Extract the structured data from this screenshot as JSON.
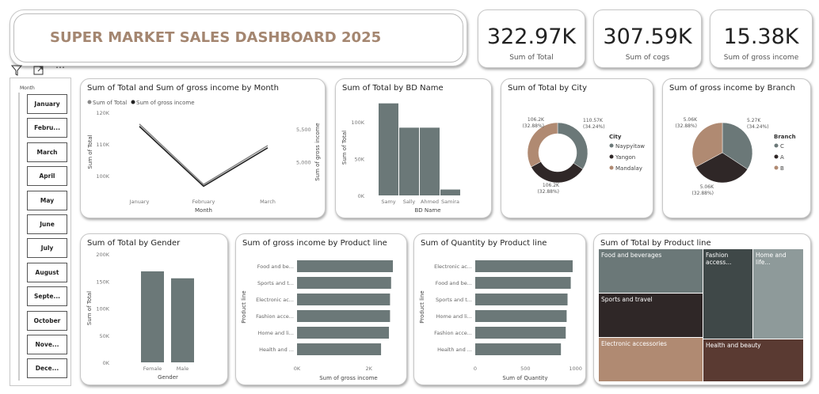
{
  "title": "SUPER MARKET SALES DASHBOARD 2025",
  "toolbar": {
    "filter_icon": "filter-icon",
    "focus_icon": "focus-mode-icon",
    "more_icon": "more-options-icon"
  },
  "kpis": [
    {
      "value": "322.97K",
      "label": "Sum of Total"
    },
    {
      "value": "307.59K",
      "label": "Sum of cogs"
    },
    {
      "value": "15.38K",
      "label": "Sum of gross income"
    }
  ],
  "slicer": {
    "header": "Month",
    "items": [
      "January",
      "Febru...",
      "March",
      "April",
      "May",
      "June",
      "July",
      "August",
      "Septe...",
      "October",
      "Nove...",
      "Dece..."
    ]
  },
  "colors": {
    "gray": "#6b7878",
    "dark": "#2f2727",
    "tan": "#b08a72",
    "brown": "#5a3a32",
    "teal": "#3f4848",
    "light": "#8e9a9a"
  },
  "chart_data": [
    {
      "type": "line",
      "title": "Sum of Total and Sum of gross income by Month",
      "xlabel": "Month",
      "ylabel": "Sum of Total",
      "y2label": "Sum of gross income",
      "categories": [
        "January",
        "February",
        "March"
      ],
      "legend": [
        "Sum of Total",
        "Sum of gross income"
      ],
      "yticks": [
        "120K",
        "110K",
        "100K"
      ],
      "y2ticks": [
        "5,500",
        "5,000"
      ],
      "series": [
        {
          "name": "Sum of Total",
          "values": [
            116300,
            97200,
            109500
          ]
        },
        {
          "name": "Sum of gross income",
          "values": [
            5537,
            4629,
            5212
          ]
        }
      ],
      "ylim": [
        95000,
        120000
      ],
      "y2lim": [
        4550,
        5750
      ]
    },
    {
      "type": "bar",
      "title": "Sum of Total by BD Name",
      "xlabel": "BD Name",
      "ylabel": "Sum of Total",
      "categories": [
        "Samy",
        "Sally",
        "Ahmed",
        "Samira"
      ],
      "values": [
        125000,
        92000,
        92000,
        8000
      ],
      "yticks": [
        "100K",
        "50K",
        "0K"
      ],
      "ylim": [
        0,
        130000
      ]
    },
    {
      "type": "pie",
      "title": "Sum of Total by City",
      "legend_title": "City",
      "labels": [
        "Naypyitaw",
        "Yangon",
        "Mandalay"
      ],
      "values": [
        110.57,
        106.2,
        106.2
      ],
      "value_labels": [
        "110.57K",
        "106.2K",
        "106.2K"
      ],
      "pct_labels": [
        "(34.24%)",
        "(32.88%)",
        "(32.88%)"
      ]
    },
    {
      "type": "pie",
      "title": "Sum of gross income by Branch",
      "legend_title": "Branch",
      "labels": [
        "C",
        "A",
        "B"
      ],
      "values": [
        5.27,
        5.06,
        5.06
      ],
      "value_labels": [
        "5.27K",
        "5.06K",
        "5.06K"
      ],
      "pct_labels": [
        "(34.24%)",
        "(32.88%)",
        "(32.88%)"
      ]
    },
    {
      "type": "bar",
      "title": "Sum of Total by Gender",
      "xlabel": "Gender",
      "ylabel": "Sum of Total",
      "categories": [
        "Female",
        "Male"
      ],
      "values": [
        167900,
        155100
      ],
      "yticks": [
        "200K",
        "150K",
        "100K",
        "50K",
        "0K"
      ],
      "ylim": [
        0,
        200000
      ]
    },
    {
      "type": "bar",
      "orientation": "horizontal",
      "title": "Sum of gross income by Product line",
      "xlabel": "Sum of gross income",
      "ylabel": "Product line",
      "categories": [
        "Food and be...",
        "Sports and t...",
        "Electronic ac...",
        "Fashion acce...",
        "Home and li...",
        "Health and ..."
      ],
      "values": [
        2670,
        2620,
        2590,
        2590,
        2560,
        2340
      ],
      "xticks": [
        "0K",
        "2K"
      ],
      "xlim": [
        0,
        3000
      ]
    },
    {
      "type": "bar",
      "orientation": "horizontal",
      "title": "Sum of Quantity by Product line",
      "xlabel": "Sum of Quantity",
      "ylabel": "Product line",
      "categories": [
        "Electronic ac...",
        "Food and be...",
        "Sports and t...",
        "Home and li...",
        "Fashion acce...",
        "Health and ..."
      ],
      "values": [
        971,
        952,
        920,
        911,
        902,
        854
      ],
      "xticks": [
        "0",
        "500",
        "1000"
      ],
      "xlim": [
        0,
        1050
      ]
    },
    {
      "type": "treemap",
      "title": "Sum of Total by Product line",
      "labels": [
        "Food and beverages",
        "Sports and travel",
        "Electronic accessories",
        "Fashion access...",
        "Home and life...",
        "Health and beauty"
      ]
    }
  ]
}
